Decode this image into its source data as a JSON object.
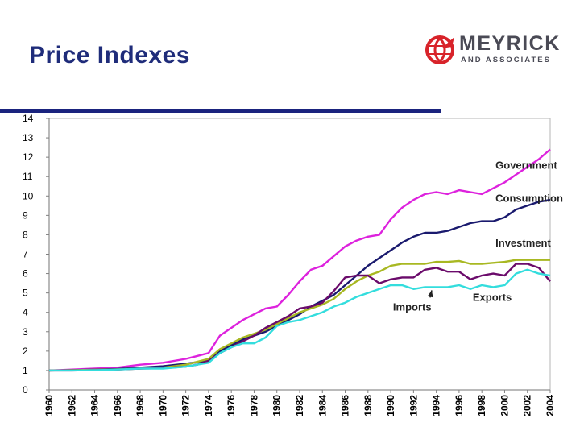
{
  "slide": {
    "title": "Price Indexes"
  },
  "logo": {
    "name": "MEYRICK",
    "tagline": "AND ASSOCIATES",
    "brand_color": "#d8232a",
    "text_color": "#4a4a55"
  },
  "colors": {
    "title": "#1f2c7a",
    "rule": "#1a237e",
    "plot_background": "#c0c0c0"
  },
  "chart_data": {
    "type": "line",
    "title": "",
    "xlabel": "",
    "ylabel": "",
    "xlim": [
      1960,
      2004
    ],
    "ylim": [
      0,
      14
    ],
    "yticks": [
      0,
      1,
      2,
      3,
      4,
      5,
      6,
      7,
      8,
      9,
      10,
      11,
      12,
      13,
      14
    ],
    "xticks": [
      "1960",
      "1962",
      "1964",
      "1966",
      "1968",
      "1970",
      "1972",
      "1974",
      "1976",
      "1978",
      "1980",
      "1982",
      "1984",
      "1986",
      "1988",
      "1990",
      "1992",
      "1994",
      "1996",
      "1998",
      "2000",
      "2002",
      "2004"
    ],
    "grid": false,
    "series": [
      {
        "name": "Government",
        "color": "#dd22dd",
        "x": [
          1960,
          1962,
          1964,
          1966,
          1968,
          1970,
          1972,
          1973,
          1974,
          1975,
          1976,
          1977,
          1978,
          1979,
          1980,
          1981,
          1982,
          1983,
          1984,
          1985,
          1986,
          1987,
          1988,
          1989,
          1990,
          1991,
          1992,
          1993,
          1994,
          1995,
          1996,
          1997,
          1998,
          1999,
          2000,
          2001,
          2002,
          2003,
          2004
        ],
        "y": [
          1.0,
          1.05,
          1.1,
          1.15,
          1.3,
          1.4,
          1.6,
          1.75,
          1.9,
          2.8,
          3.2,
          3.6,
          3.9,
          4.2,
          4.3,
          4.9,
          5.6,
          6.2,
          6.4,
          6.9,
          7.4,
          7.7,
          7.9,
          8.0,
          8.8,
          9.4,
          9.8,
          10.1,
          10.2,
          10.1,
          10.3,
          10.2,
          10.1,
          10.4,
          10.7,
          11.1,
          11.5,
          11.9,
          12.4
        ]
      },
      {
        "name": "Consumption",
        "color": "#1a1a6e",
        "x": [
          1960,
          1962,
          1964,
          1966,
          1968,
          1970,
          1972,
          1974,
          1975,
          1976,
          1977,
          1978,
          1979,
          1980,
          1981,
          1982,
          1983,
          1984,
          1985,
          1986,
          1987,
          1988,
          1989,
          1990,
          1991,
          1992,
          1993,
          1994,
          1995,
          1996,
          1997,
          1998,
          1999,
          2000,
          2001,
          2002,
          2003,
          2004
        ],
        "y": [
          1.0,
          1.02,
          1.05,
          1.08,
          1.15,
          1.22,
          1.35,
          1.5,
          2.0,
          2.3,
          2.6,
          2.8,
          3.0,
          3.3,
          3.6,
          3.9,
          4.3,
          4.6,
          4.9,
          5.4,
          5.9,
          6.4,
          6.8,
          7.2,
          7.6,
          7.9,
          8.1,
          8.1,
          8.2,
          8.4,
          8.6,
          8.7,
          8.7,
          8.9,
          9.3,
          9.5,
          9.7,
          9.8
        ]
      },
      {
        "name": "Investment",
        "color": "#a8b822",
        "x": [
          1960,
          1962,
          1964,
          1966,
          1968,
          1970,
          1972,
          1974,
          1975,
          1976,
          1977,
          1978,
          1979,
          1980,
          1981,
          1982,
          1983,
          1984,
          1985,
          1986,
          1987,
          1988,
          1989,
          1990,
          1991,
          1992,
          1993,
          1994,
          1995,
          1996,
          1997,
          1998,
          1999,
          2000,
          2001,
          2002,
          2003,
          2004
        ],
        "y": [
          1.0,
          1.02,
          1.04,
          1.06,
          1.1,
          1.15,
          1.3,
          1.6,
          2.1,
          2.4,
          2.7,
          2.9,
          3.1,
          3.4,
          3.7,
          4.0,
          4.2,
          4.4,
          4.7,
          5.2,
          5.6,
          5.9,
          6.1,
          6.4,
          6.5,
          6.5,
          6.5,
          6.6,
          6.6,
          6.65,
          6.5,
          6.5,
          6.55,
          6.6,
          6.7,
          6.7,
          6.7,
          6.7
        ]
      },
      {
        "name": "Exports",
        "color": "#6b0b6b",
        "x": [
          1960,
          1962,
          1964,
          1966,
          1968,
          1970,
          1972,
          1973,
          1974,
          1975,
          1976,
          1977,
          1978,
          1979,
          1980,
          1981,
          1982,
          1983,
          1984,
          1985,
          1986,
          1987,
          1988,
          1989,
          1990,
          1991,
          1992,
          1993,
          1994,
          1995,
          1996,
          1997,
          1998,
          1999,
          2000,
          2001,
          2002,
          2003,
          2004
        ],
        "y": [
          1.0,
          1.0,
          1.02,
          1.05,
          1.1,
          1.12,
          1.2,
          1.3,
          1.5,
          1.9,
          2.2,
          2.5,
          2.8,
          3.2,
          3.5,
          3.8,
          4.2,
          4.3,
          4.5,
          5.1,
          5.8,
          5.9,
          5.9,
          5.5,
          5.7,
          5.8,
          5.8,
          6.2,
          6.3,
          6.1,
          6.1,
          5.7,
          5.9,
          6.0,
          5.9,
          6.5,
          6.5,
          6.3,
          5.6
        ]
      },
      {
        "name": "Imports",
        "color": "#33dddd",
        "x": [
          1960,
          1962,
          1964,
          1966,
          1968,
          1970,
          1972,
          1974,
          1975,
          1976,
          1977,
          1978,
          1979,
          1980,
          1981,
          1982,
          1983,
          1984,
          1985,
          1986,
          1987,
          1988,
          1989,
          1990,
          1991,
          1992,
          1993,
          1994,
          1995,
          1996,
          1997,
          1998,
          1999,
          2000,
          2001,
          2002,
          2003,
          2004
        ],
        "y": [
          1.0,
          1.0,
          1.02,
          1.05,
          1.1,
          1.1,
          1.2,
          1.4,
          1.9,
          2.2,
          2.4,
          2.4,
          2.7,
          3.3,
          3.5,
          3.6,
          3.8,
          4.0,
          4.3,
          4.5,
          4.8,
          5.0,
          5.2,
          5.4,
          5.4,
          5.2,
          5.3,
          5.3,
          5.3,
          5.4,
          5.2,
          5.4,
          5.3,
          5.4,
          6.0,
          6.2,
          6.0,
          5.9
        ]
      }
    ],
    "annotations": [
      {
        "text": "Government",
        "series": "Government",
        "x": 1999.2,
        "y": 11.4
      },
      {
        "text": "Consumption",
        "series": "Consumption",
        "x": 1999.2,
        "y": 9.7
      },
      {
        "text": "Investment",
        "series": "Investment",
        "x": 1999.2,
        "y": 7.4
      },
      {
        "text": "Exports",
        "series": "Exports",
        "x": 1997.2,
        "y": 4.6
      },
      {
        "text": "Imports",
        "series": "Imports",
        "x": 1990.2,
        "y": 4.1,
        "arrow_to": {
          "x": 1993.6,
          "y": 5.3
        }
      }
    ]
  }
}
